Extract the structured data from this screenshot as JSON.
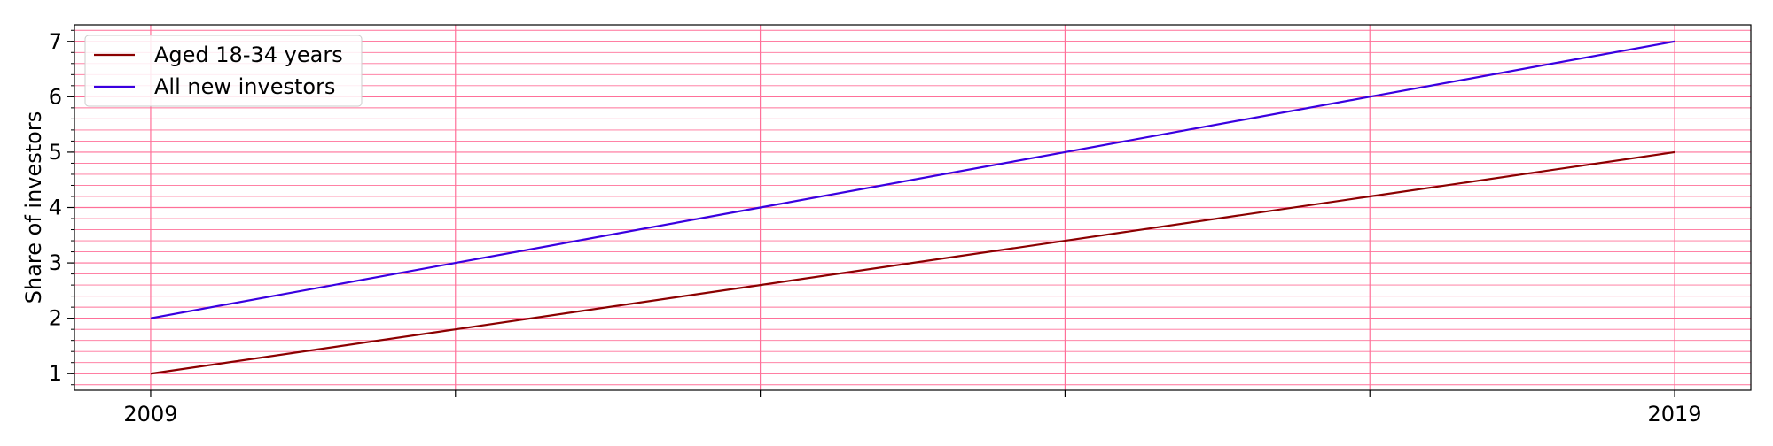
{
  "chart_data": {
    "type": "line",
    "title": "",
    "xlabel": "",
    "ylabel": "Share of investors",
    "x": [
      2009,
      2011,
      2013,
      2015,
      2017,
      2019
    ],
    "x_tick_labels": [
      "2009",
      "",
      "",
      "",
      "",
      "2019"
    ],
    "xlim": [
      2008.5,
      2019.5
    ],
    "y_ticks": [
      1,
      2,
      3,
      4,
      5,
      6,
      7
    ],
    "ylim": [
      0.7,
      7.3
    ],
    "series": [
      {
        "name": "Aged 18-34 years",
        "color": "#8b0000",
        "values": [
          1.0,
          1.8,
          2.6,
          3.4,
          4.2,
          5.0
        ]
      },
      {
        "name": "All new investors",
        "color": "#3a00e0",
        "values": [
          2.0,
          3.0,
          4.0,
          5.0,
          6.0,
          7.0
        ]
      }
    ],
    "grid": true,
    "grid_color": "#ff7099",
    "minor_grid_y": true,
    "legend_position": "top-left"
  }
}
